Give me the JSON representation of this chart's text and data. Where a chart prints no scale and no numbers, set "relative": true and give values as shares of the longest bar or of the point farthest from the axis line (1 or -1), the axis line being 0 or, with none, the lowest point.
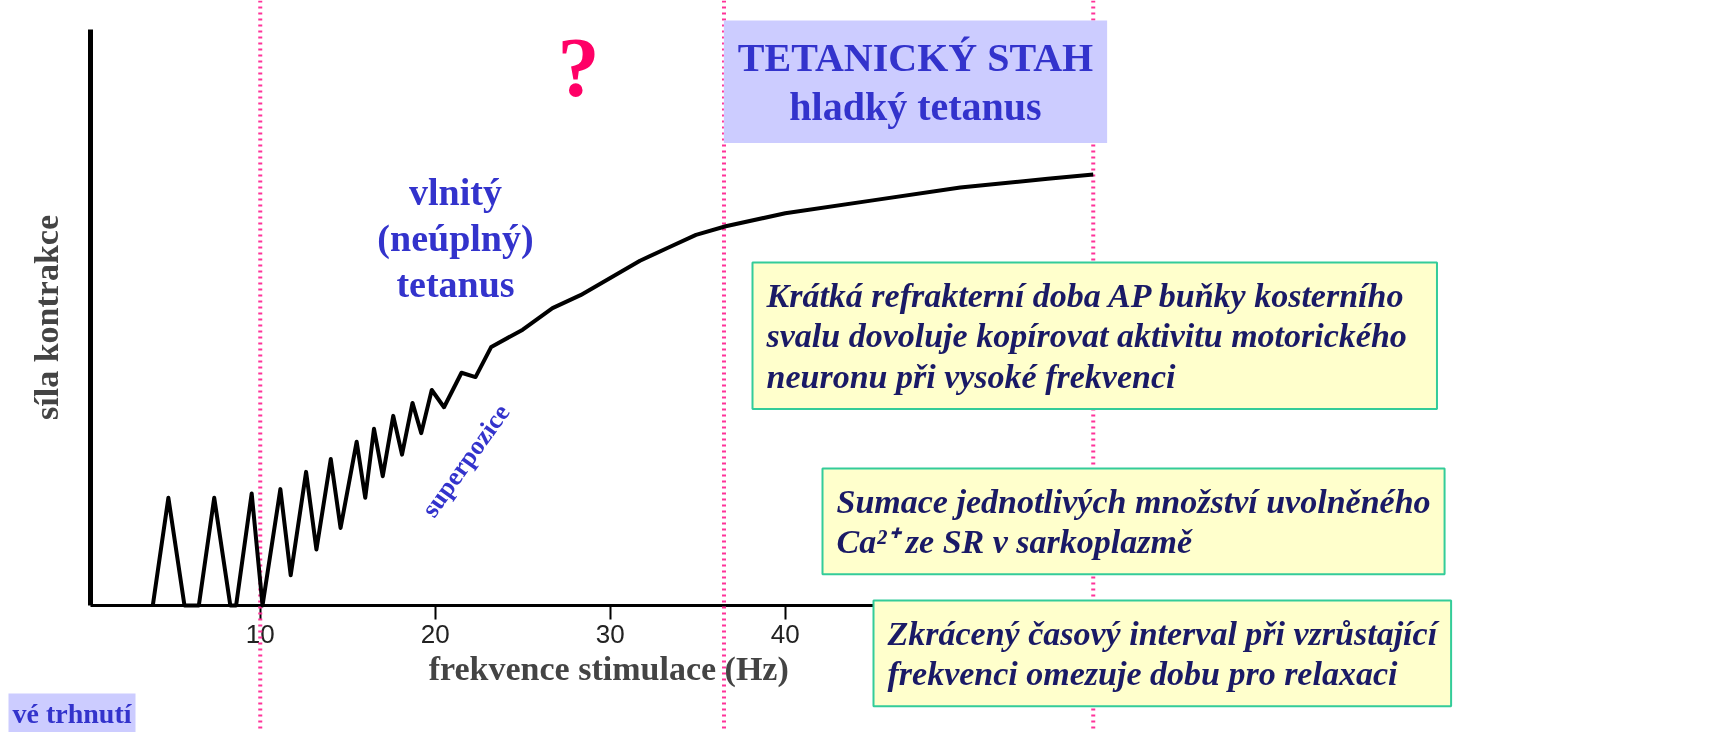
{
  "chart_data": {
    "type": "line",
    "relative": true,
    "xlabel": "frekvence  stimulace (Hz)",
    "ylabel": "síla kontrakce",
    "xlim": [
      0.3,
      60
    ],
    "xticks": [
      10,
      20,
      30,
      40
    ],
    "x": [
      3.86,
      4.75,
      5.67,
      6.49,
      7.37,
      8.29,
      8.62,
      9.51,
      10.13,
      11.15,
      11.74,
      12.62,
      13.21,
      14.03,
      14.59,
      15.51,
      16.0,
      16.5,
      17.0,
      17.6,
      18.1,
      18.7,
      19.2,
      19.8,
      20.5,
      21.5,
      22.3,
      23.2,
      25,
      26.7,
      28.3,
      30,
      31.7,
      33.3,
      34.9,
      36.6,
      40,
      45,
      50,
      55,
      57.6
    ],
    "series": [
      {
        "color": "#000000",
        "values": [
          0,
          0.25,
          0,
          0,
          0.25,
          0,
          0,
          0.26,
          0,
          0.27,
          0.07,
          0.31,
          0.13,
          0.34,
          0.18,
          0.38,
          0.25,
          0.41,
          0.3,
          0.44,
          0.35,
          0.47,
          0.4,
          0.5,
          0.46,
          0.54,
          0.53,
          0.6,
          0.64,
          0.69,
          0.72,
          0.76,
          0.8,
          0.83,
          0.86,
          0.88,
          0.91,
          0.94,
          0.97,
          0.99,
          1.0
        ]
      }
    ],
    "ref_lines": [
      {
        "axis": "x",
        "value": 10,
        "color": "#ff3399",
        "line_style": "dotted"
      },
      {
        "axis": "x",
        "value": 36.5,
        "color": "#ff3399",
        "line_style": "dotted"
      },
      {
        "axis": "x",
        "value": 57.6,
        "color": "#ff3399",
        "line_style": "dotted"
      }
    ],
    "annotations": [
      "?",
      "TETANICKÝ STAH",
      "hladký tetanus",
      "vlnitý\n(neúplný)\ntetanus",
      "superpozice",
      "Krátká refrakterní doba  AP  buňky kosterního\nsvalu dovoluje kopírovat aktivitu motorického\nneuronu při vysoké frekvenci",
      "Sumace jednotlivých množství uvolněného\nCa²⁺ ze SR v sarkoplazmě",
      "Zkrácený časový interval při vzrůstající\nfrekvenci omezuje dobu pro relaxaci",
      "vé trhnutí"
    ]
  }
}
